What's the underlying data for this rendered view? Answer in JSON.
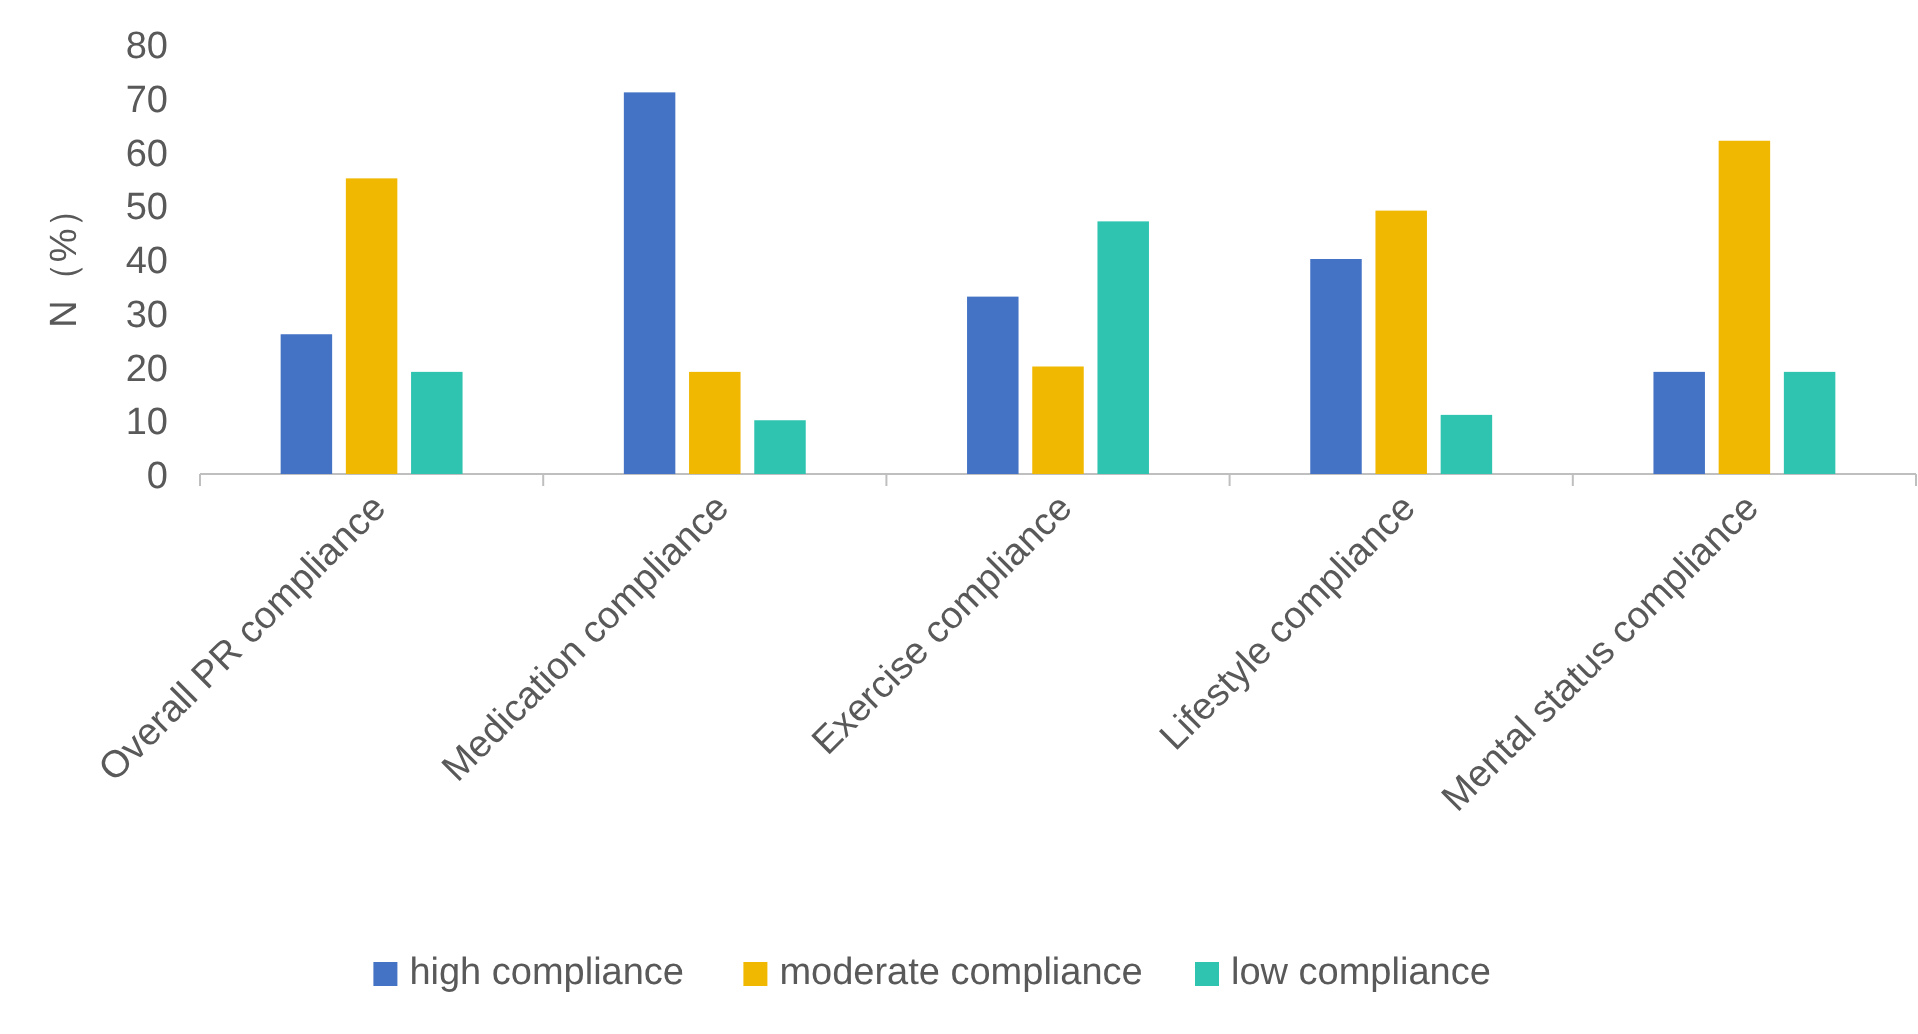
{
  "chart_data": {
    "type": "bar",
    "ylabel": "N（%）",
    "categories": [
      "Overall PR compliance",
      "Medication compliance",
      "Exercise compliance",
      "Lifestyle compliance",
      "Mental status compliance"
    ],
    "series": [
      {
        "name": "high compliance",
        "color": "#4472c4",
        "values": [
          26,
          71,
          33,
          40,
          19
        ]
      },
      {
        "name": "moderate compliance",
        "color": "#f0b800",
        "values": [
          55,
          19,
          20,
          49,
          62
        ]
      },
      {
        "name": "low compliance",
        "color": "#2ec4b0",
        "values": [
          19,
          10,
          47,
          11,
          19
        ]
      }
    ],
    "ylim": [
      0,
      80
    ],
    "yticks": [
      0,
      10,
      20,
      30,
      40,
      50,
      60,
      70,
      80
    ],
    "legend": "bottom"
  }
}
